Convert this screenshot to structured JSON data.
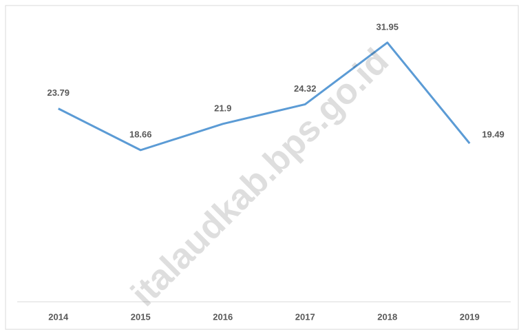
{
  "chart_data": {
    "type": "line",
    "categories": [
      "2014",
      "2015",
      "2016",
      "2017",
      "2018",
      "2019"
    ],
    "series": [
      {
        "color": "#5b9bd5",
        "values": [
          23.79,
          18.66,
          21.9,
          24.32,
          31.95,
          19.49
        ]
      }
    ],
    "ylim": [
      0,
      35
    ],
    "watermark": "italaudkab.bps.go.id"
  }
}
